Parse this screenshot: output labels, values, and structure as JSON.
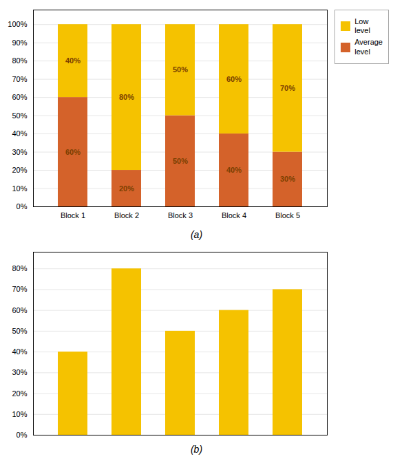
{
  "chart_data": [
    {
      "type": "bar",
      "stacked": true,
      "caption": "(a)",
      "categories": [
        "Block 1",
        "Block 2",
        "Block 3",
        "Block 4",
        "Block 5"
      ],
      "series": [
        {
          "name": "Average\nlevel",
          "color": "#D4622A",
          "values": [
            60,
            20,
            50,
            40,
            30
          ],
          "value_labels": [
            "60%",
            "20%",
            "50%",
            "40%",
            "30%"
          ]
        },
        {
          "name": "Low\nlevel",
          "color": "#F5C200",
          "values": [
            40,
            80,
            50,
            60,
            70
          ],
          "value_labels": [
            "40%",
            "80%",
            "50%",
            "60%",
            "70%"
          ]
        }
      ],
      "ylim": [
        0,
        108
      ],
      "yticks": [
        {
          "value": 0,
          "label": "0%"
        },
        {
          "value": 10,
          "label": "10%"
        },
        {
          "value": 20,
          "label": "20%"
        },
        {
          "value": 30,
          "label": "30%"
        },
        {
          "value": 40,
          "label": "40%"
        },
        {
          "value": 50,
          "label": "50%"
        },
        {
          "value": 60,
          "label": "60%"
        },
        {
          "value": 70,
          "label": "70%"
        },
        {
          "value": 80,
          "label": "80%"
        },
        {
          "value": 90,
          "label": "90%"
        },
        {
          "value": 100,
          "label": "100%"
        }
      ],
      "grid": true,
      "legend": "upper right",
      "data_labels": true
    },
    {
      "type": "bar",
      "caption": "(b)",
      "categories": [
        null,
        null,
        null,
        null,
        null
      ],
      "values": [
        40,
        80,
        50,
        60,
        70
      ],
      "color": "#F5C200",
      "ylim": [
        0,
        88
      ],
      "yticks": [
        {
          "value": 0,
          "label": "0%"
        },
        {
          "value": 10,
          "label": "10%"
        },
        {
          "value": 20,
          "label": "20%"
        },
        {
          "value": 30,
          "label": "30%"
        },
        {
          "value": 40,
          "label": "40%"
        },
        {
          "value": 50,
          "label": "50%"
        },
        {
          "value": 60,
          "label": "60%"
        },
        {
          "value": 70,
          "label": "70%"
        },
        {
          "value": 80,
          "label": "80%"
        }
      ],
      "grid": true,
      "tick_labels": "y"
    }
  ]
}
